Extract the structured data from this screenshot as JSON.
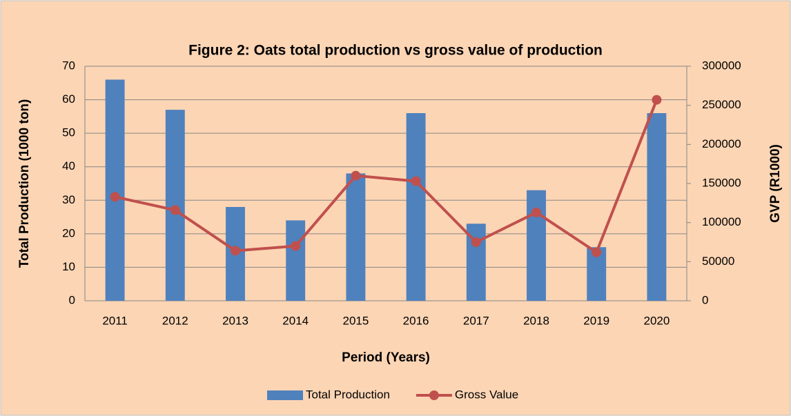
{
  "chart_data": {
    "type": "bar_line",
    "title": "Figure 2: Oats total production vs gross value of production",
    "x_label": "Period (Years)",
    "y_label": "Total Production (1000 ton)",
    "y2_label": "GVP (R1000)",
    "categories": [
      "2011",
      "2012",
      "2013",
      "2014",
      "2015",
      "2016",
      "2017",
      "2018",
      "2019",
      "2020"
    ],
    "series": [
      {
        "name": "Total Production",
        "type": "bar",
        "color": "#4f81bd",
        "values": [
          66,
          57,
          28,
          24,
          38,
          56,
          23,
          33,
          16,
          56
        ]
      },
      {
        "name": "Gross Value",
        "type": "line",
        "axis": "y2",
        "color": "#c0504d",
        "values": [
          133000,
          116000,
          64000,
          70000,
          160000,
          153000,
          75000,
          113000,
          62000,
          257000
        ]
      }
    ],
    "ylim": [
      0,
      70
    ],
    "yticks": [
      0,
      10,
      20,
      30,
      40,
      50,
      60,
      70
    ],
    "y2lim": [
      0,
      300000
    ],
    "y2ticks": [
      0,
      50000,
      100000,
      150000,
      200000,
      250000,
      300000
    ],
    "grid": true,
    "legend": "bottom"
  }
}
